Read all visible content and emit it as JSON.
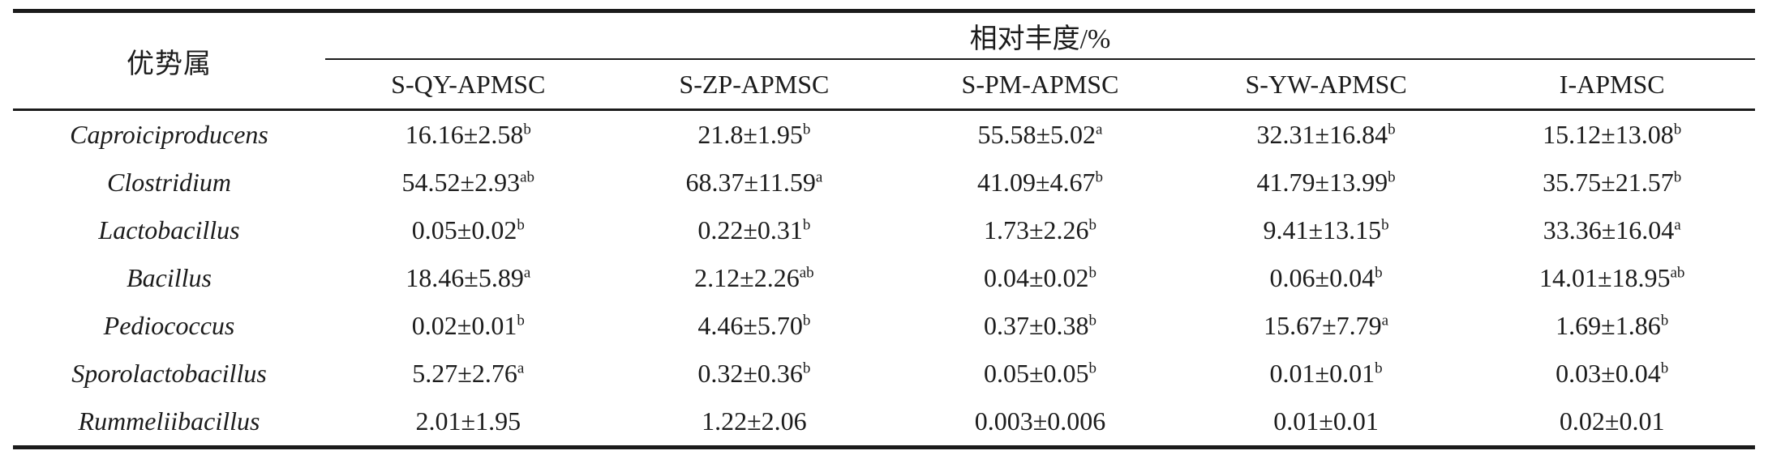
{
  "table": {
    "genus_header": "优势属",
    "group_header": "相对丰度/%",
    "columns": [
      "S-QY-APMSC",
      "S-ZP-APMSC",
      "S-PM-APMSC",
      "S-YW-APMSC",
      "I-APMSC"
    ],
    "rows": [
      {
        "genus": "Caproiciproducens",
        "values": [
          {
            "text": "16.16±2.58",
            "sup": "b"
          },
          {
            "text": "21.8±1.95",
            "sup": "b"
          },
          {
            "text": "55.58±5.02",
            "sup": "a"
          },
          {
            "text": "32.31±16.84",
            "sup": "b"
          },
          {
            "text": "15.12±13.08",
            "sup": "b"
          }
        ]
      },
      {
        "genus": "Clostridium",
        "values": [
          {
            "text": "54.52±2.93",
            "sup": "ab"
          },
          {
            "text": "68.37±11.59",
            "sup": "a"
          },
          {
            "text": "41.09±4.67",
            "sup": "b"
          },
          {
            "text": "41.79±13.99",
            "sup": "b"
          },
          {
            "text": "35.75±21.57",
            "sup": "b"
          }
        ]
      },
      {
        "genus": "Lactobacillus",
        "values": [
          {
            "text": "0.05±0.02",
            "sup": "b"
          },
          {
            "text": "0.22±0.31",
            "sup": "b"
          },
          {
            "text": "1.73±2.26",
            "sup": "b"
          },
          {
            "text": "9.41±13.15",
            "sup": "b"
          },
          {
            "text": "33.36±16.04",
            "sup": "a"
          }
        ]
      },
      {
        "genus": "Bacillus",
        "values": [
          {
            "text": "18.46±5.89",
            "sup": "a"
          },
          {
            "text": "2.12±2.26",
            "sup": "ab"
          },
          {
            "text": "0.04±0.02",
            "sup": "b"
          },
          {
            "text": "0.06±0.04",
            "sup": "b"
          },
          {
            "text": "14.01±18.95",
            "sup": "ab"
          }
        ]
      },
      {
        "genus": "Pediococcus",
        "values": [
          {
            "text": "0.02±0.01",
            "sup": "b"
          },
          {
            "text": "4.46±5.70",
            "sup": "b"
          },
          {
            "text": "0.37±0.38",
            "sup": "b"
          },
          {
            "text": "15.67±7.79",
            "sup": "a"
          },
          {
            "text": "1.69±1.86",
            "sup": "b"
          }
        ]
      },
      {
        "genus": "Sporolactobacillus",
        "values": [
          {
            "text": "5.27±2.76",
            "sup": "a"
          },
          {
            "text": "0.32±0.36",
            "sup": "b"
          },
          {
            "text": "0.05±0.05",
            "sup": "b"
          },
          {
            "text": "0.01±0.01",
            "sup": "b"
          },
          {
            "text": "0.03±0.04",
            "sup": "b"
          }
        ]
      },
      {
        "genus": "Rummeliibacillus",
        "values": [
          {
            "text": "2.01±1.95",
            "sup": ""
          },
          {
            "text": "1.22±2.06",
            "sup": ""
          },
          {
            "text": "0.003±0.006",
            "sup": ""
          },
          {
            "text": "0.01±0.01",
            "sup": ""
          },
          {
            "text": "0.02±0.01",
            "sup": ""
          }
        ]
      }
    ]
  },
  "colors": {
    "text": "#1c1c1c",
    "rule": "#1b1b1b",
    "background": "#ffffff"
  }
}
